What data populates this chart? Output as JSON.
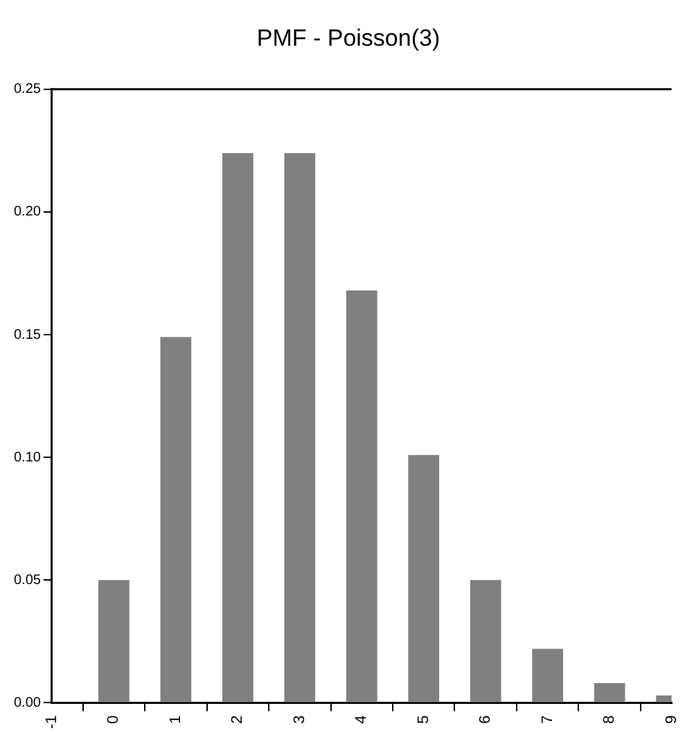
{
  "chart_data": {
    "type": "bar",
    "title": "PMF - Poisson(3)",
    "x": [
      0,
      1,
      2,
      3,
      4,
      5,
      6,
      7,
      8,
      9
    ],
    "values": [
      0.05,
      0.149,
      0.224,
      0.224,
      0.168,
      0.101,
      0.05,
      0.022,
      0.008,
      0.003
    ],
    "color": "#808080",
    "xlim": [
      -1,
      9
    ],
    "xticks": [
      -1,
      0,
      1,
      2,
      3,
      4,
      5,
      6,
      7,
      8,
      9
    ],
    "ylim": [
      0,
      0.25
    ],
    "yticks": [
      {
        "value": 0,
        "label": "0.00"
      },
      {
        "value": 0.05,
        "label": "0.05"
      },
      {
        "value": 0.1,
        "label": "0.10"
      },
      {
        "value": 0.15,
        "label": "0.15"
      },
      {
        "value": 0.2,
        "label": "0.20"
      },
      {
        "value": 0.25,
        "label": "0.25"
      }
    ],
    "grid": false,
    "legend": false
  }
}
